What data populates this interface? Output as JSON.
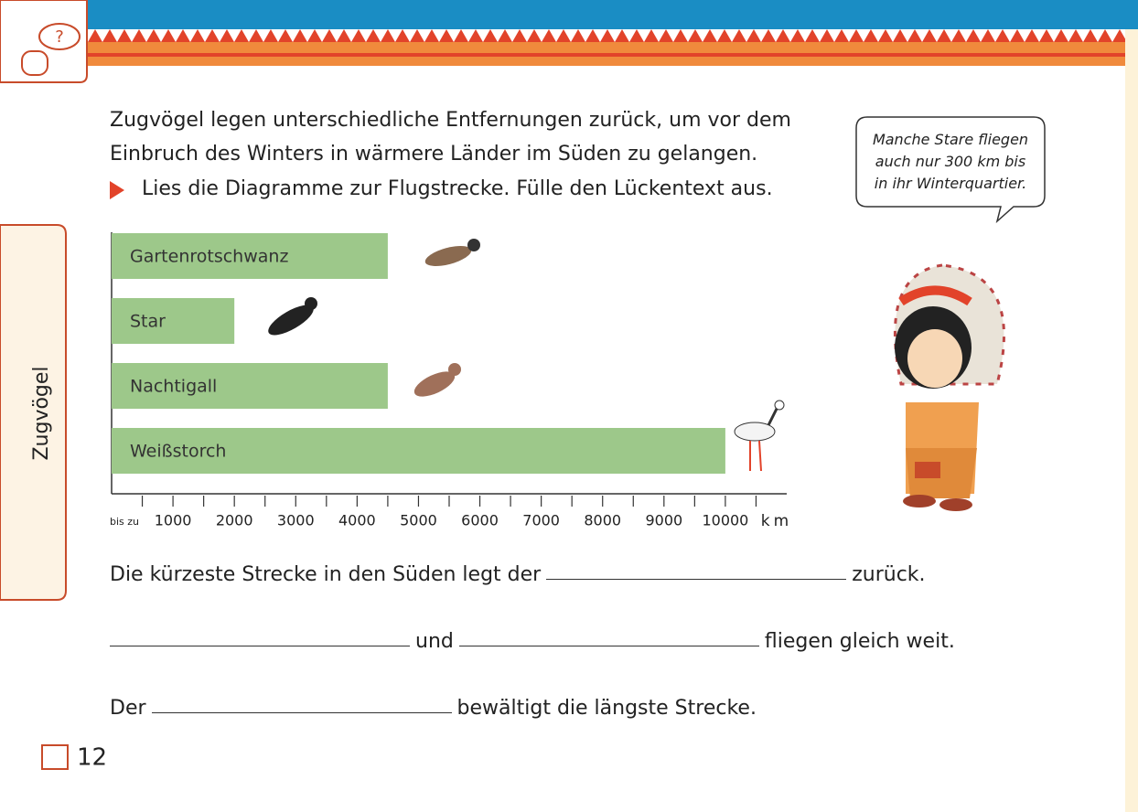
{
  "icon_symbol": "?",
  "side_tab": "Zugvögel",
  "intro": [
    "Zugvögel legen unterschiedliche Entfernungen zurück, um vor dem",
    "Einbruch des Winters in wärmere Länder im Süden zu gelangen."
  ],
  "task": "Lies die Diagramme zur Flugstrecke. Fülle den Lückentext aus.",
  "speech_bubble": [
    "Manche Stare fliegen",
    "auch nur 300 km bis",
    "in ihr Winterquartier."
  ],
  "chart_data": {
    "type": "bar",
    "orientation": "horizontal",
    "categories": [
      "Gartenrotschwanz",
      "Star",
      "Nachtigall",
      "Weißstorch"
    ],
    "values": [
      4500,
      2000,
      4500,
      10000
    ],
    "color": "#9dc88a",
    "xlim": [
      0,
      11000
    ],
    "xticks": [
      1000,
      2000,
      3000,
      4000,
      5000,
      6000,
      7000,
      8000,
      9000,
      10000
    ],
    "xminorticks": [
      500,
      1500,
      2500,
      3500,
      4500,
      5500,
      6500,
      7500,
      8500,
      9500,
      10500
    ],
    "xtick_prefix": "bis zu",
    "xlabel": "km"
  },
  "sentences": [
    [
      "Die kürzeste Strecke in den Süden legt der",
      "zurück."
    ],
    [
      "und",
      "fliegen gleich weit."
    ],
    [
      "Der",
      "bewältigt die längste Strecke."
    ]
  ],
  "page_number": 12
}
